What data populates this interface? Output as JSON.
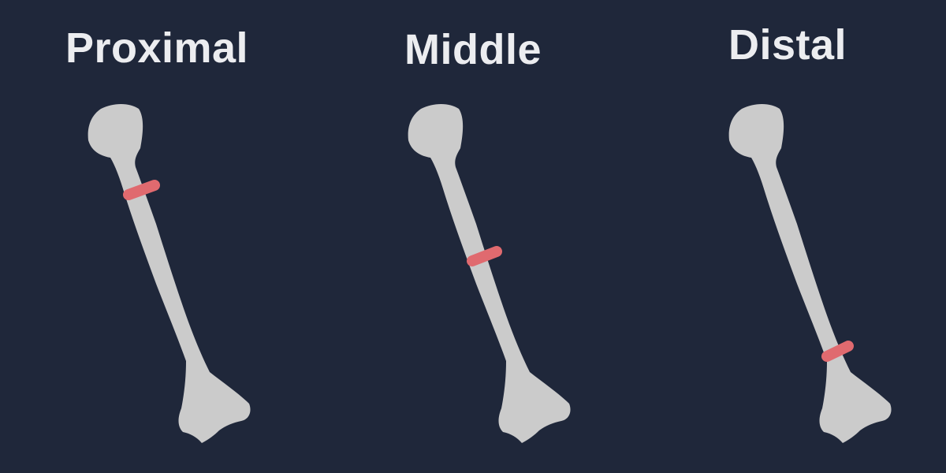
{
  "panels": [
    {
      "label": "Proximal",
      "fracture_site": "proximal"
    },
    {
      "label": "Middle",
      "fracture_site": "middle"
    },
    {
      "label": "Distal",
      "fracture_site": "distal"
    }
  ],
  "colors": {
    "background": "#1f273a",
    "bone": "#cbcbcb",
    "fracture_band": "#e06a6f",
    "title_text": "#ecedf0"
  }
}
